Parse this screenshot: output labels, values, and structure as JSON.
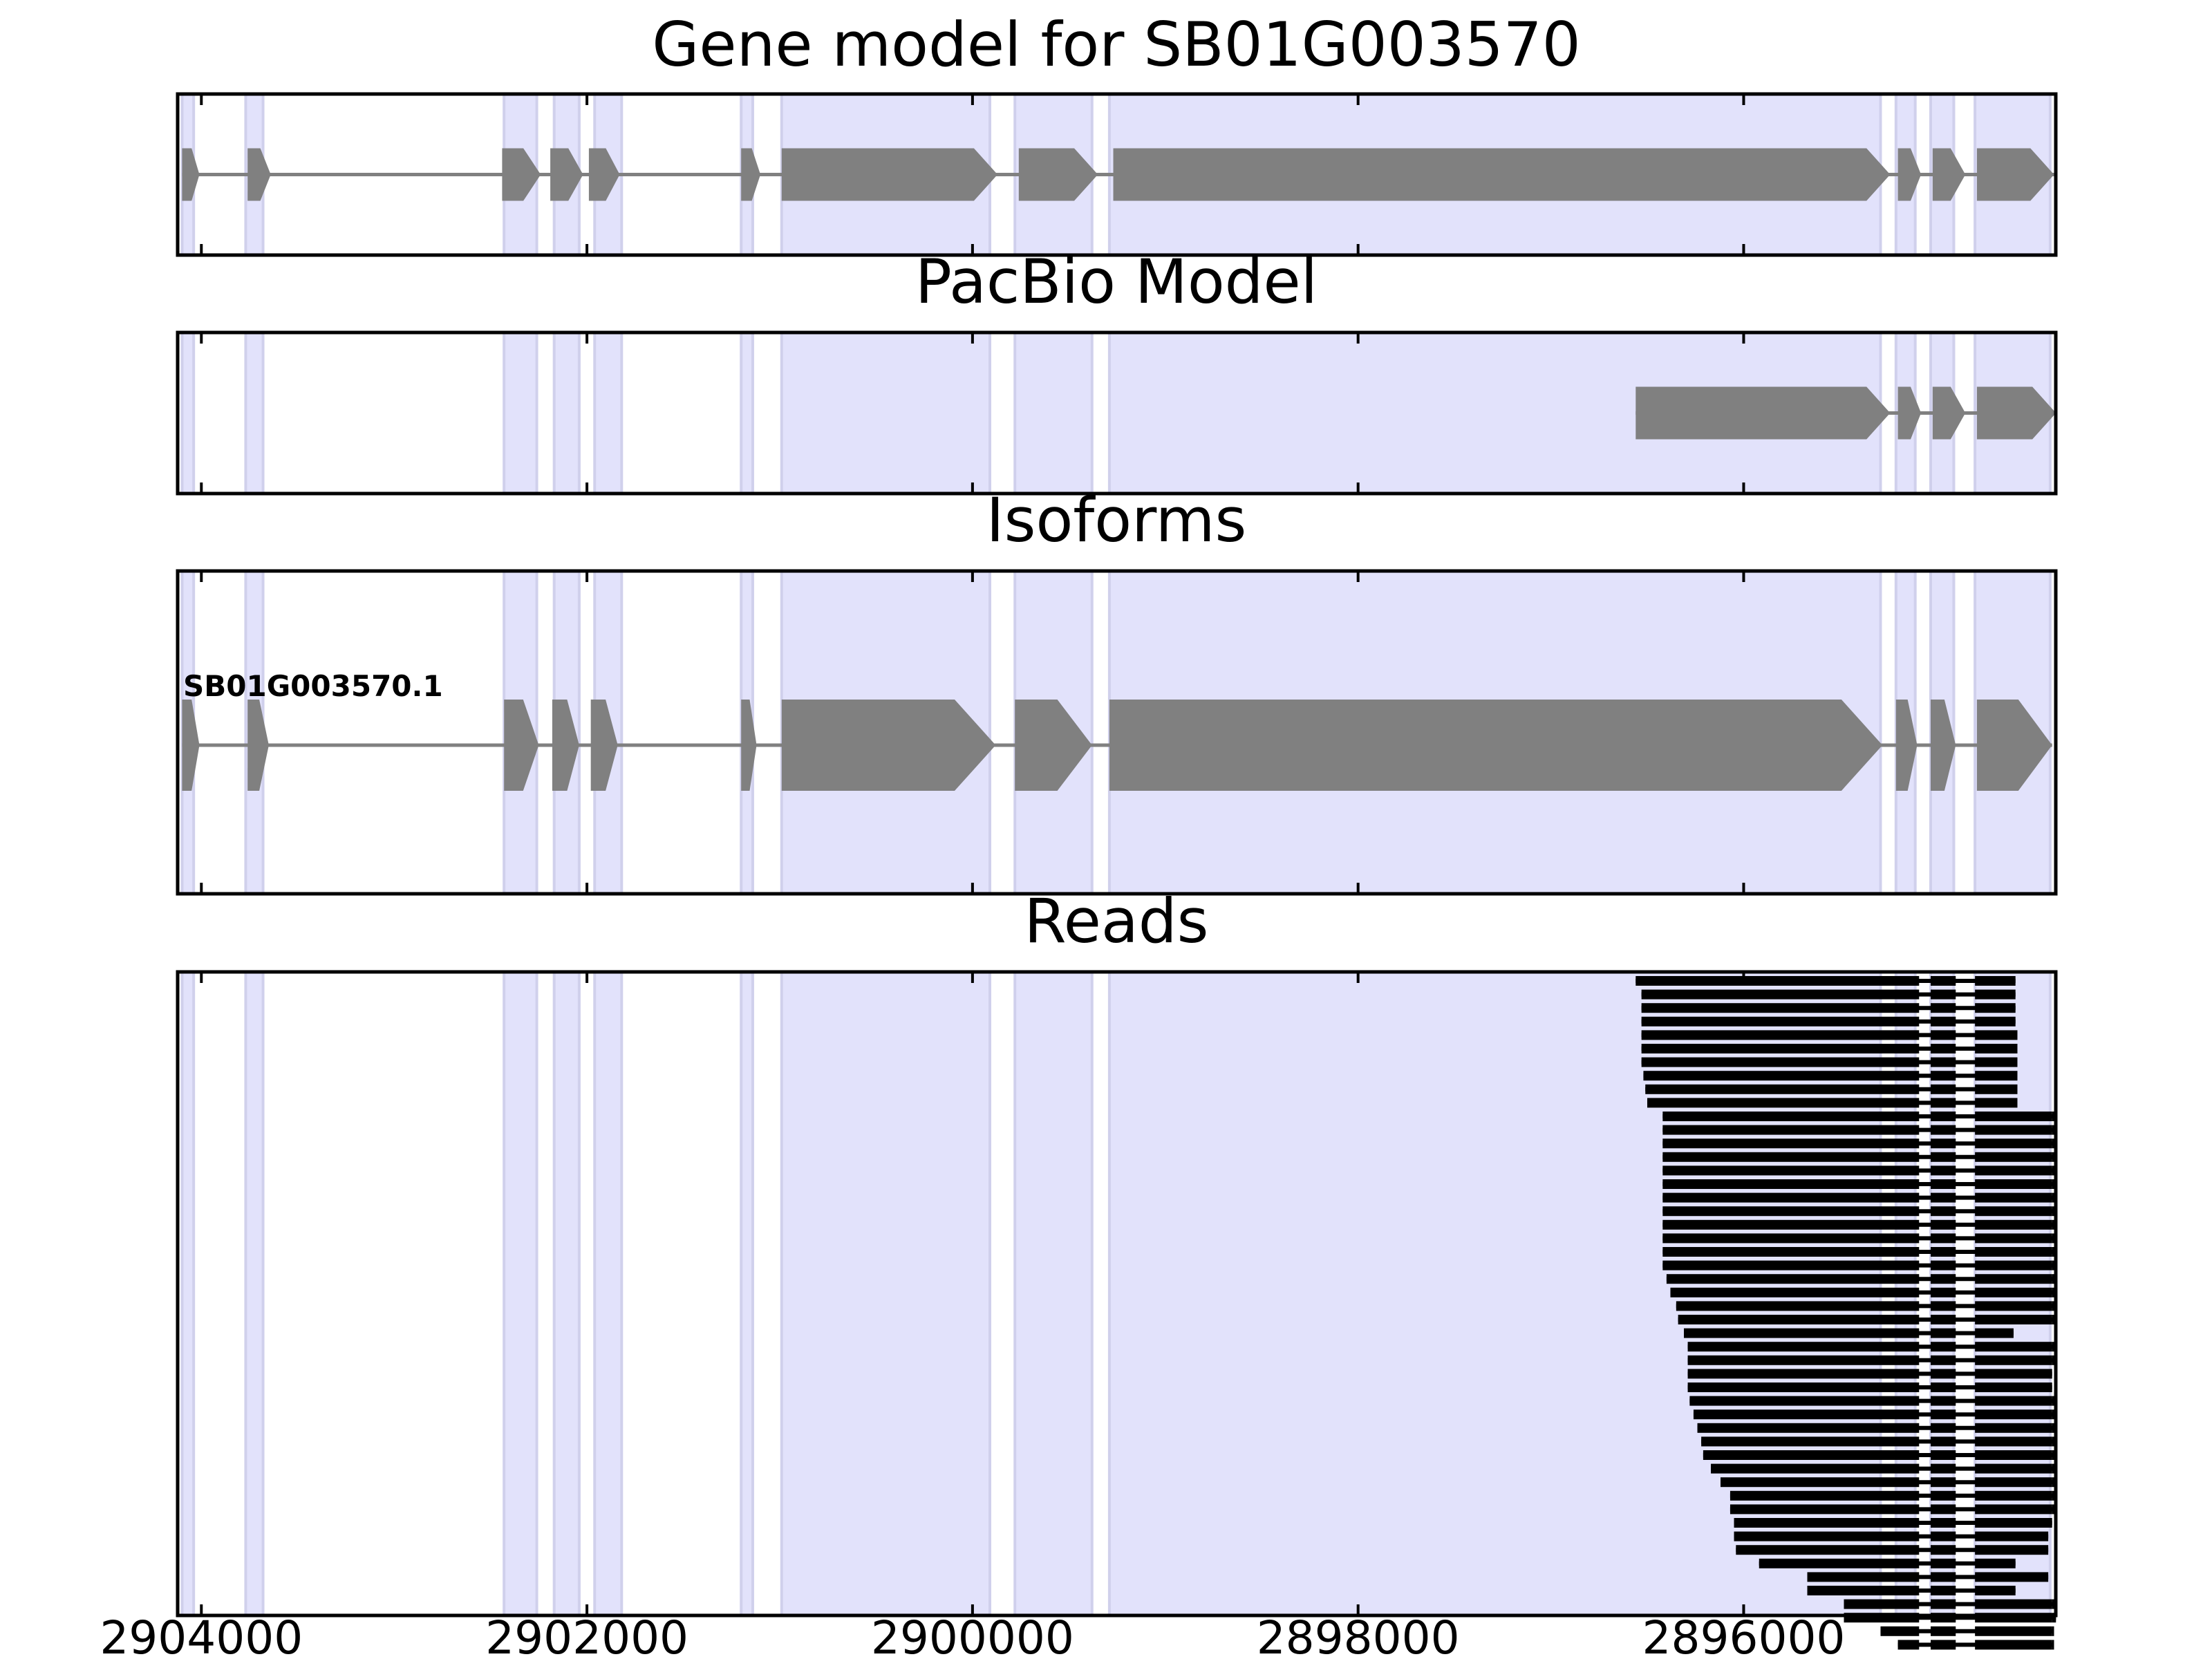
{
  "chart_data": {
    "type": "gene-structure",
    "x_axis": {
      "range": [
        2904123,
        2894381
      ],
      "direction": "descending",
      "ticks": [
        2904000,
        2902000,
        2900000,
        2898000,
        2896000
      ],
      "tick_labels": [
        "2904000",
        "2902000",
        "2900000",
        "2898000",
        "2896000"
      ]
    },
    "highlight_color": "#e2e2fb",
    "feature_color": "#808080",
    "read_color": "#000000",
    "exon_regions": [
      [
        2904100,
        2904040
      ],
      [
        2903770,
        2903680
      ],
      [
        2902430,
        2902260
      ],
      [
        2902170,
        2902040
      ],
      [
        2901960,
        2901820
      ],
      [
        2901200,
        2901140
      ],
      [
        2900990,
        2899910
      ],
      [
        2899780,
        2899380
      ],
      [
        2899290,
        2895290
      ],
      [
        2895210,
        2895110
      ],
      [
        2895030,
        2894910
      ],
      [
        2894800,
        2894410
      ]
    ],
    "panels": [
      {
        "title": "Gene model for SB01G003570",
        "gene_track": {
          "exons": [
            [
              2904100,
              2904010
            ],
            [
              2903760,
              2903640
            ],
            [
              2902440,
              2902240
            ],
            [
              2902190,
              2902020
            ],
            [
              2901990,
              2901830
            ],
            [
              2901200,
              2901100
            ],
            [
              2900990,
              2899870
            ],
            [
              2899760,
              2899350
            ],
            [
              2899270,
              2895240
            ],
            [
              2895200,
              2895080
            ],
            [
              2895020,
              2894850
            ],
            [
              2894790,
              2894390
            ]
          ]
        }
      },
      {
        "title": "PacBio Model",
        "gene_track": {
          "exons": [
            [
              2896560,
              2895240
            ],
            [
              2895200,
              2895080
            ],
            [
              2895020,
              2894850
            ],
            [
              2894790,
              2894380
            ]
          ]
        }
      },
      {
        "title": "Isoforms",
        "isoforms": [
          {
            "name": "SB01G003570.1",
            "exons": [
              [
                2904100,
                2904010
              ],
              [
                2903760,
                2903650
              ],
              [
                2902430,
                2902250
              ],
              [
                2902180,
                2902040
              ],
              [
                2901980,
                2901840
              ],
              [
                2901200,
                2901120
              ],
              [
                2900990,
                2899880
              ],
              [
                2899780,
                2899380
              ],
              [
                2899290,
                2895280
              ],
              [
                2895210,
                2895100
              ],
              [
                2895030,
                2894900
              ],
              [
                2894790,
                2894400
              ]
            ]
          }
        ]
      },
      {
        "title": "Reads",
        "reads": {
          "exon_blocks": [
            [
              2895220,
              2895090
            ],
            [
              2895030,
              2894900
            ],
            [
              2894800,
              2894400
            ]
          ],
          "read_starts": [
            2896560,
            2896530,
            2896530,
            2896530,
            2896530,
            2896530,
            2896530,
            2896520,
            2896510,
            2896500,
            2896420,
            2896420,
            2896420,
            2896420,
            2896420,
            2896420,
            2896420,
            2896420,
            2896420,
            2896420,
            2896420,
            2896420,
            2896400,
            2896380,
            2896350,
            2896340,
            2896310,
            2896290,
            2896290,
            2896290,
            2896290,
            2896280,
            2896260,
            2896240,
            2896220,
            2896210,
            2896170,
            2896120,
            2896070,
            2896070,
            2896050,
            2896050,
            2896040,
            2895920,
            2895670,
            2895670,
            2895480,
            2895480,
            2895290,
            2895200
          ],
          "read_ends": [
            2894590,
            2894590,
            2894590,
            2894590,
            2894580,
            2894580,
            2894580,
            2894580,
            2894580,
            2894580,
            2894380,
            2894380,
            2894380,
            2894380,
            2894380,
            2894380,
            2894380,
            2894380,
            2894380,
            2894380,
            2894380,
            2894380,
            2894380,
            2894380,
            2894380,
            2894380,
            2894600,
            2894380,
            2894380,
            2894400,
            2894400,
            2894380,
            2894380,
            2894380,
            2894380,
            2894390,
            2894390,
            2894380,
            2894380,
            2894390,
            2894400,
            2894420,
            2894420,
            2894590,
            2894420,
            2894590,
            2894380,
            2894380,
            2894390,
            2894390
          ]
        }
      }
    ]
  }
}
